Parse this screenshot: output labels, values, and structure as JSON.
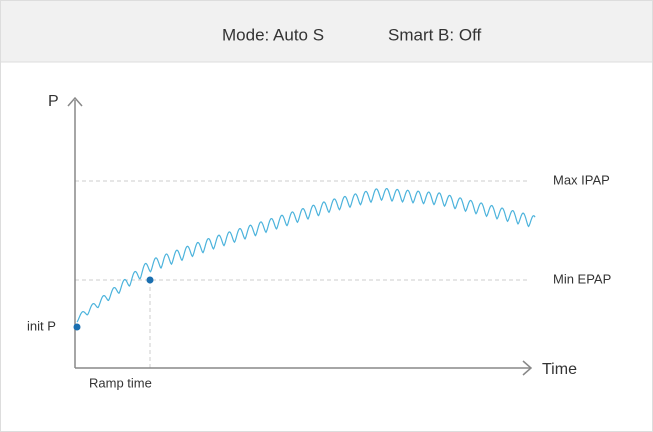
{
  "header": {
    "mode": "Mode: Auto S",
    "smart": "Smart B: Off"
  },
  "diagram": {
    "y_axis": "P",
    "x_axis": "Time",
    "max_line": "Max IPAP",
    "min_line": "Min EPAP",
    "start_label": "init P",
    "ramp_label": "Ramp time"
  }
}
